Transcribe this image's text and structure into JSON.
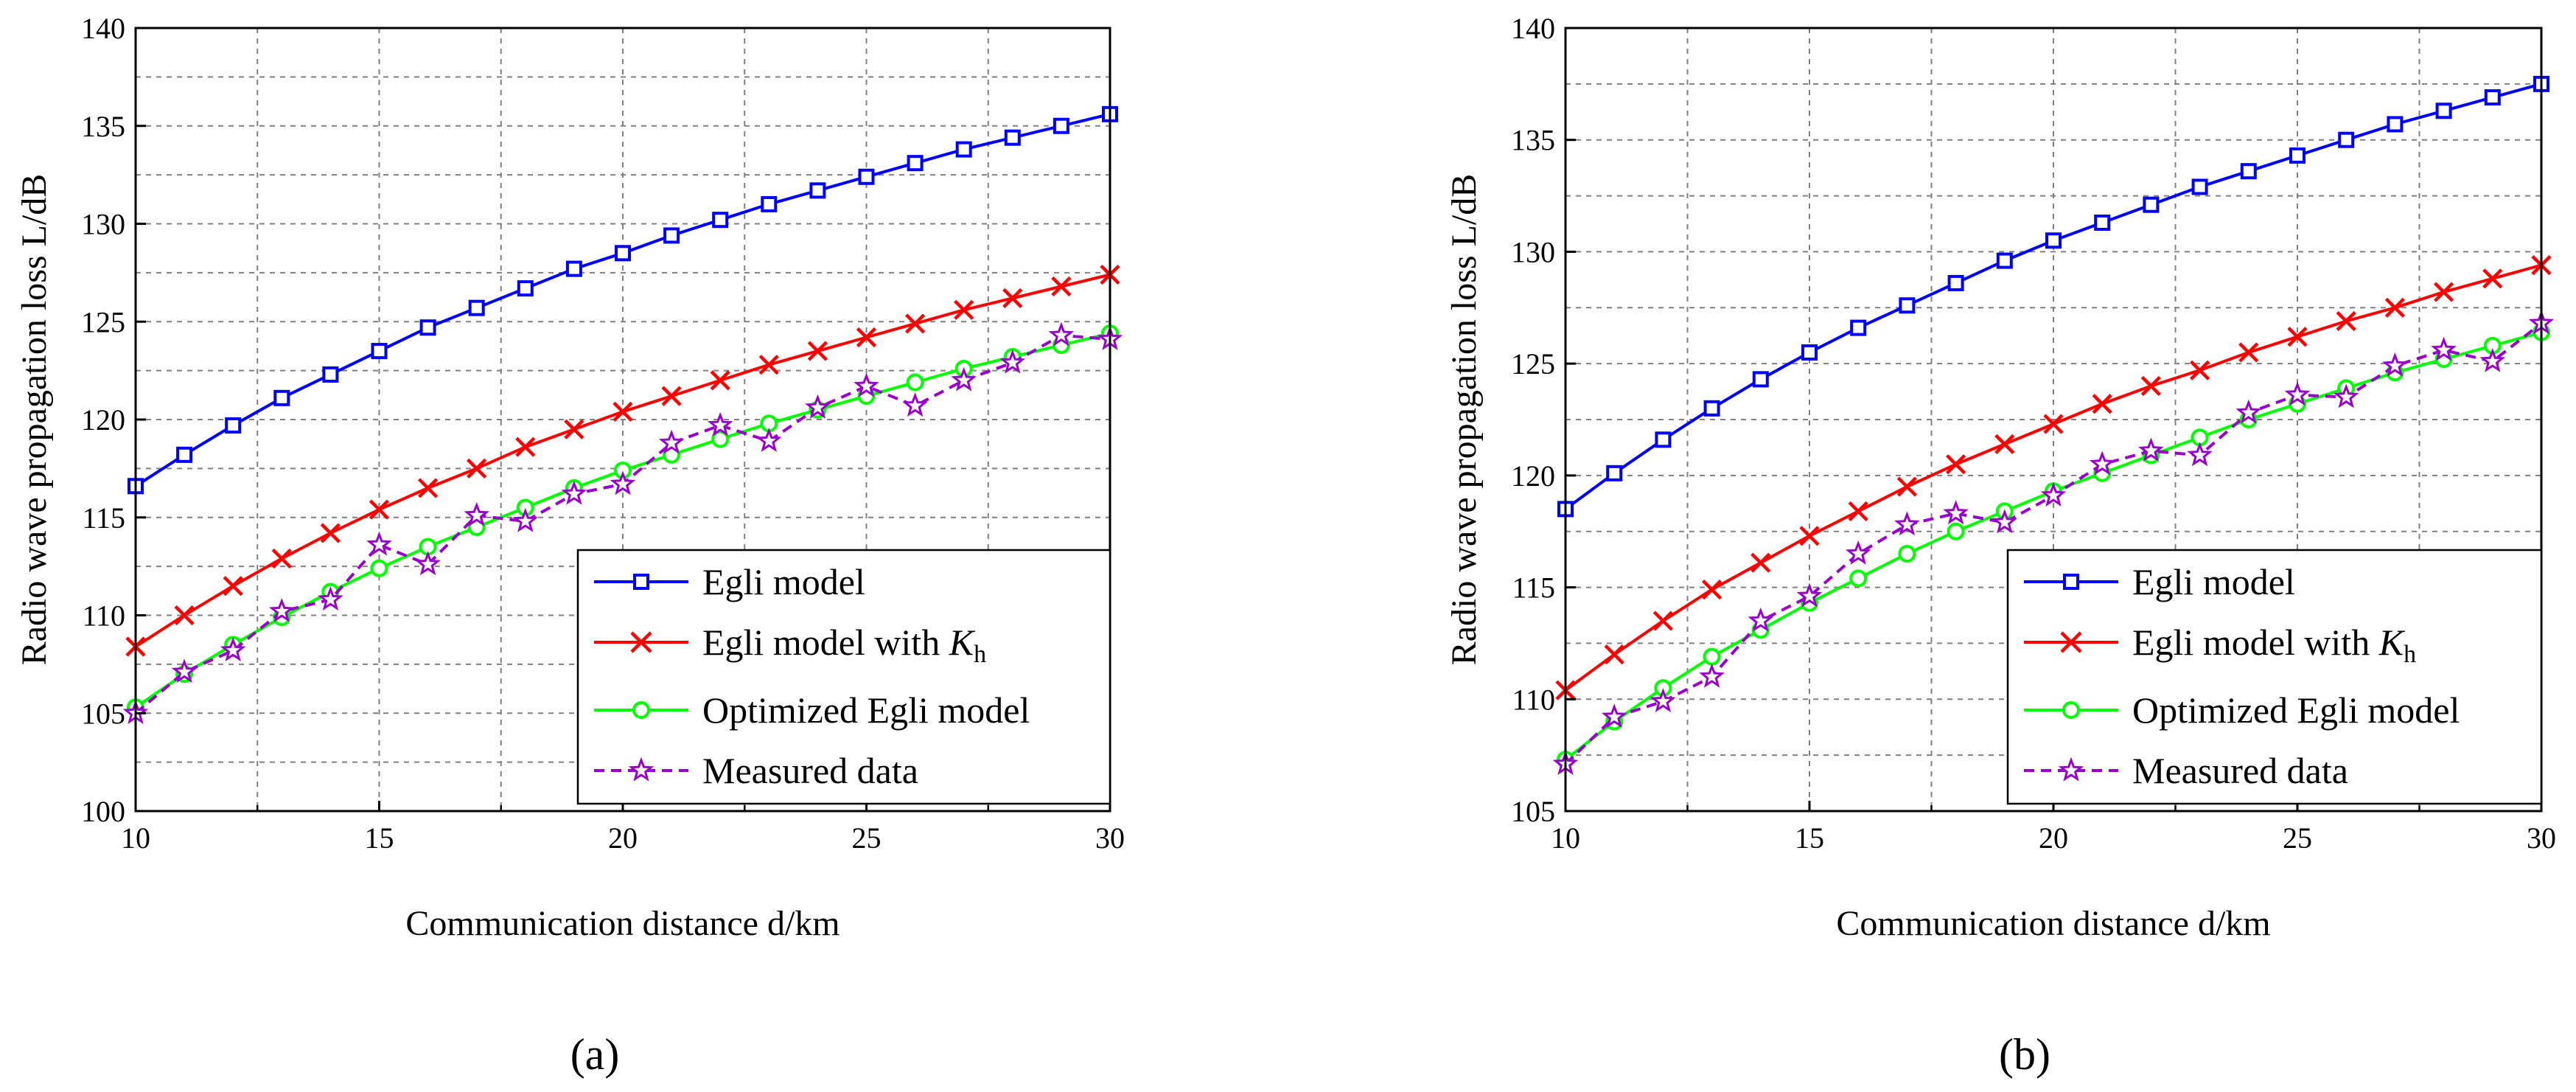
{
  "figure": {
    "panel_labels": [
      "(a)",
      "(b)"
    ]
  },
  "chart_data": [
    {
      "type": "line",
      "panel": "a",
      "xlabel": "Communication distance d/km",
      "ylabel": "Radio wave propagation loss L/dB",
      "xlim": [
        10,
        30
      ],
      "ylim": [
        100,
        140
      ],
      "x_ticks": [
        10,
        15,
        20,
        25,
        30
      ],
      "y_ticks": [
        100,
        105,
        110,
        115,
        120,
        125,
        130,
        135,
        140
      ],
      "x_minor_step": 2.5,
      "y_minor_step": 2.5,
      "grid": true,
      "legend_position": "bottom-right",
      "x": [
        10,
        11,
        12,
        13,
        14,
        15,
        16,
        17,
        18,
        19,
        20,
        21,
        22,
        23,
        24,
        25,
        26,
        27,
        28,
        29,
        30
      ],
      "series": [
        {
          "name": "Egli model",
          "color": "#0000ff",
          "marker": "square",
          "dash": false,
          "values": [
            116.6,
            118.2,
            119.7,
            121.1,
            122.3,
            123.5,
            124.7,
            125.7,
            126.7,
            127.7,
            128.5,
            129.4,
            130.2,
            131.0,
            131.7,
            132.4,
            133.1,
            133.8,
            134.4,
            135.0,
            135.6
          ]
        },
        {
          "name": "Egli model with Kh",
          "label_main": "Egli model with ",
          "label_k": "K",
          "label_sub": "h",
          "color": "#ff0000",
          "marker": "x",
          "dash": false,
          "values": [
            108.4,
            110.0,
            111.5,
            112.9,
            114.2,
            115.4,
            116.5,
            117.5,
            118.6,
            119.5,
            120.4,
            121.2,
            122.0,
            122.8,
            123.5,
            124.2,
            124.9,
            125.6,
            126.2,
            126.8,
            127.4
          ]
        },
        {
          "name": "Optimized Egli model",
          "color": "#00ff00",
          "marker": "circle",
          "dash": false,
          "values": [
            105.3,
            107.0,
            108.5,
            109.9,
            111.2,
            112.4,
            113.5,
            114.5,
            115.5,
            116.5,
            117.4,
            118.2,
            119.0,
            119.8,
            120.5,
            121.2,
            121.9,
            122.6,
            123.2,
            123.8,
            124.4
          ]
        },
        {
          "name": "Measured data",
          "color": "#9900cc",
          "marker": "star",
          "dash": true,
          "values": [
            105.0,
            107.1,
            108.2,
            110.2,
            110.8,
            113.6,
            112.6,
            115.1,
            114.8,
            116.2,
            116.7,
            118.8,
            119.7,
            118.9,
            120.6,
            121.7,
            120.7,
            122.0,
            122.9,
            124.3,
            124.1
          ]
        }
      ]
    },
    {
      "type": "line",
      "panel": "b",
      "xlabel": "Communication distance d/km",
      "ylabel": "Radio wave propagation loss L/dB",
      "xlim": [
        10,
        30
      ],
      "ylim": [
        105,
        140
      ],
      "x_ticks": [
        10,
        15,
        20,
        25,
        30
      ],
      "y_ticks": [
        105,
        110,
        115,
        120,
        125,
        130,
        135,
        140
      ],
      "x_minor_step": 2.5,
      "y_minor_step": 2.5,
      "grid": true,
      "legend_position": "bottom-right",
      "x": [
        10,
        11,
        12,
        13,
        14,
        15,
        16,
        17,
        18,
        19,
        20,
        21,
        22,
        23,
        24,
        25,
        26,
        27,
        28,
        29,
        30
      ],
      "series": [
        {
          "name": "Egli model",
          "color": "#0000ff",
          "marker": "square",
          "dash": false,
          "values": [
            118.5,
            120.1,
            121.6,
            123.0,
            124.3,
            125.5,
            126.6,
            127.6,
            128.6,
            129.6,
            130.5,
            131.3,
            132.1,
            132.9,
            133.6,
            134.3,
            135.0,
            135.7,
            136.3,
            136.9,
            137.5
          ]
        },
        {
          "name": "Egli model with Kh",
          "label_main": "Egli model with ",
          "label_k": "K",
          "label_sub": "h",
          "color": "#ff0000",
          "marker": "x",
          "dash": false,
          "values": [
            110.4,
            112.0,
            113.5,
            114.9,
            116.1,
            117.3,
            118.4,
            119.5,
            120.5,
            121.4,
            122.3,
            123.2,
            124.0,
            124.7,
            125.5,
            126.2,
            126.9,
            127.5,
            128.2,
            128.8,
            129.4
          ]
        },
        {
          "name": "Optimized Egli model",
          "color": "#00ff00",
          "marker": "circle",
          "dash": false,
          "values": [
            107.3,
            109.0,
            110.5,
            111.9,
            113.1,
            114.3,
            115.4,
            116.5,
            117.5,
            118.4,
            119.3,
            120.1,
            120.9,
            121.7,
            122.5,
            123.2,
            123.9,
            124.6,
            125.2,
            125.8,
            126.4
          ]
        },
        {
          "name": "Measured data",
          "color": "#9900cc",
          "marker": "star",
          "dash": true,
          "values": [
            107.1,
            109.2,
            109.9,
            111.0,
            113.5,
            114.6,
            116.5,
            117.8,
            118.3,
            117.9,
            119.1,
            120.5,
            121.1,
            120.9,
            122.8,
            123.6,
            123.5,
            124.9,
            125.6,
            125.1,
            126.8
          ]
        }
      ]
    }
  ]
}
